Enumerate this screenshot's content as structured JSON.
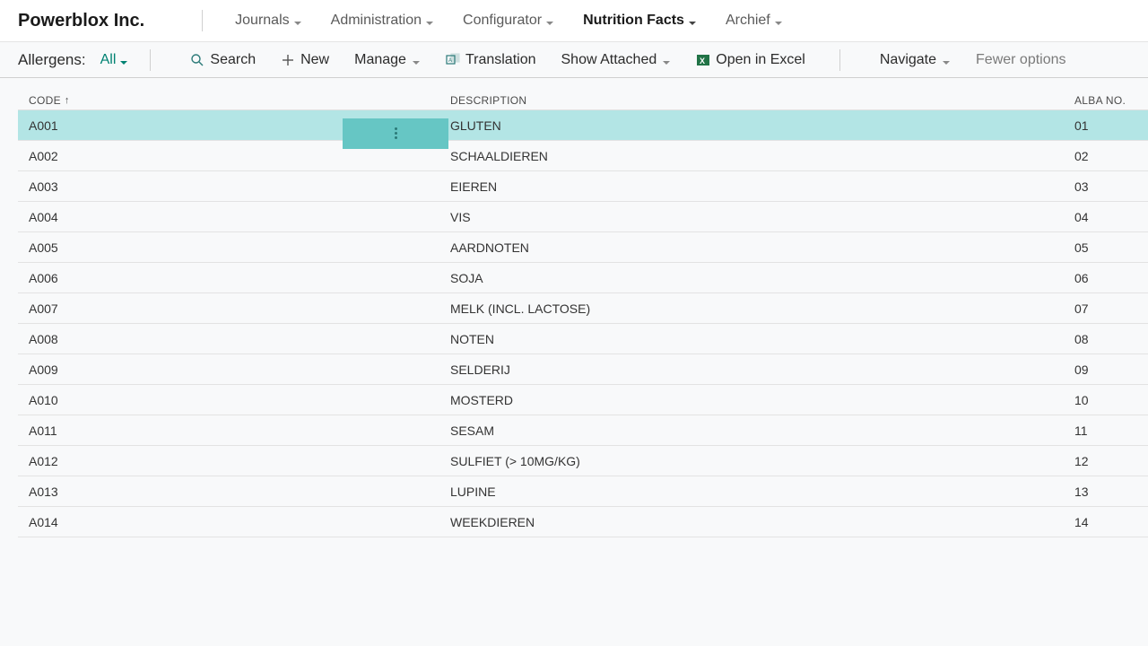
{
  "brand": "Powerblox Inc.",
  "nav": {
    "items": [
      {
        "label": "Journals",
        "active": false
      },
      {
        "label": "Administration",
        "active": false
      },
      {
        "label": "Configurator",
        "active": false
      },
      {
        "label": "Nutrition Facts",
        "active": true
      },
      {
        "label": "Archief",
        "active": false
      }
    ]
  },
  "toolbar": {
    "label": "Allergens:",
    "filter": "All",
    "search": "Search",
    "new": "New",
    "manage": "Manage",
    "translation": "Translation",
    "show_attached": "Show Attached",
    "open_excel": "Open in Excel",
    "navigate": "Navigate",
    "fewer_options": "Fewer options"
  },
  "table": {
    "headers": {
      "code": "CODE",
      "description": "DESCRIPTION",
      "alba": "ALBA NO."
    },
    "sort_indicator": "↑",
    "rows": [
      {
        "code": "A001",
        "description": "GLUTEN",
        "alba": "01",
        "selected": true
      },
      {
        "code": "A002",
        "description": "SCHAALDIEREN",
        "alba": "02",
        "selected": false
      },
      {
        "code": "A003",
        "description": "EIEREN",
        "alba": "03",
        "selected": false
      },
      {
        "code": "A004",
        "description": "VIS",
        "alba": "04",
        "selected": false
      },
      {
        "code": "A005",
        "description": "AARDNOTEN",
        "alba": "05",
        "selected": false
      },
      {
        "code": "A006",
        "description": "SOJA",
        "alba": "06",
        "selected": false
      },
      {
        "code": "A007",
        "description": "MELK (INCL. LACTOSE)",
        "alba": "07",
        "selected": false
      },
      {
        "code": "A008",
        "description": "NOTEN",
        "alba": "08",
        "selected": false
      },
      {
        "code": "A009",
        "description": "SELDERIJ",
        "alba": "09",
        "selected": false
      },
      {
        "code": "A010",
        "description": "MOSTERD",
        "alba": "10",
        "selected": false
      },
      {
        "code": "A011",
        "description": "SESAM",
        "alba": "11",
        "selected": false
      },
      {
        "code": "A012",
        "description": "SULFIET (> 10MG/KG)",
        "alba": "12",
        "selected": false
      },
      {
        "code": "A013",
        "description": "LUPINE",
        "alba": "13",
        "selected": false
      },
      {
        "code": "A014",
        "description": "WEEKDIEREN",
        "alba": "14",
        "selected": false
      }
    ]
  },
  "colors": {
    "teal": "#008272",
    "selected_bg": "#b3e5e5",
    "selected_action": "#66c6c4",
    "excel_green": "#217346"
  }
}
